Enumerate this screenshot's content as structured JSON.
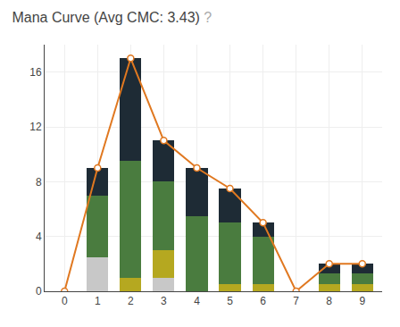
{
  "chart_data": {
    "type": "bar",
    "title": "Mana Curve (Avg CMC: 3.43)",
    "annotations": [
      {
        "text": "?",
        "color": "#aaaaaa"
      }
    ],
    "x": [
      0,
      1,
      2,
      3,
      4,
      5,
      6,
      7,
      8,
      9
    ],
    "series": [
      {
        "type": "bar",
        "color": "#c8c8c8",
        "values": [
          0,
          2.5,
          0,
          1.0,
          0,
          0,
          0,
          0,
          0,
          0
        ]
      },
      {
        "type": "bar",
        "color": "#b5a820",
        "values": [
          0,
          0,
          1.0,
          2.0,
          0,
          0.5,
          0.5,
          0,
          0.5,
          0.5
        ]
      },
      {
        "type": "bar",
        "color": "#4a7c3f",
        "values": [
          0,
          4.5,
          8.5,
          5.0,
          5.5,
          4.5,
          3.5,
          0,
          0.8,
          0.8
        ]
      },
      {
        "type": "bar",
        "color": "#1e2b35",
        "values": [
          0,
          2.0,
          7.5,
          3.0,
          3.5,
          2.5,
          1.0,
          0,
          0.7,
          0.7
        ]
      },
      {
        "type": "line",
        "color": "#e07820",
        "marker": "circle",
        "values": [
          0,
          9,
          17,
          11,
          9,
          7.5,
          5,
          0,
          2,
          2
        ]
      }
    ],
    "stacked": true,
    "xlim": [
      -0.6,
      9.6
    ],
    "xticks": [
      0,
      1,
      2,
      3,
      4,
      5,
      6,
      7,
      8,
      9
    ],
    "ylim": [
      0,
      18
    ],
    "yticks": [
      0,
      4,
      8,
      12,
      16
    ],
    "grid": true
  }
}
